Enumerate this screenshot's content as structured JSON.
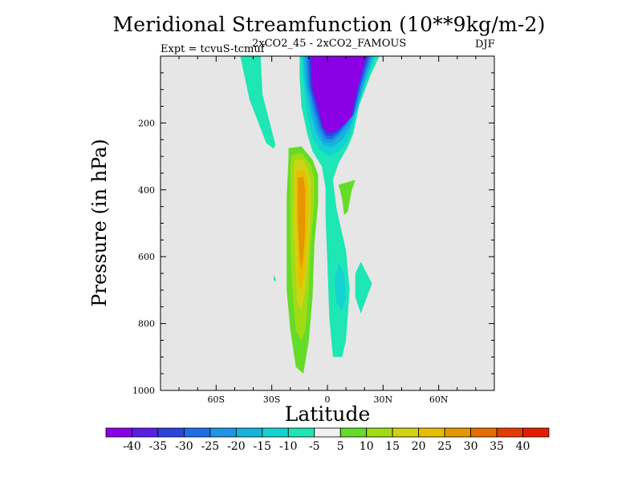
{
  "chart_data": {
    "type": "contour",
    "title": "Meridional Streamfunction (10**9kg/m-2)",
    "experiment": "Expt = tcvuS-tcmuf",
    "subtitle": "2xCO2_45 - 2xCO2_FAMOUS",
    "season": "DJF",
    "xlabel": "Latitude",
    "ylabel": "Pressure (in hPa)",
    "xlim": [
      -90,
      90
    ],
    "ylim": [
      1000,
      0
    ],
    "x_ticks": [
      {
        "value": -60,
        "label": "60S"
      },
      {
        "value": -30,
        "label": "30S"
      },
      {
        "value": 0,
        "label": "0"
      },
      {
        "value": 30,
        "label": "30N"
      },
      {
        "value": 60,
        "label": "60N"
      }
    ],
    "y_ticks": [
      {
        "value": 200,
        "label": "200"
      },
      {
        "value": 400,
        "label": "400"
      },
      {
        "value": 600,
        "label": "600"
      },
      {
        "value": 800,
        "label": "800"
      },
      {
        "value": 1000,
        "label": "1000"
      }
    ],
    "background_color": "#e6e6e6",
    "colorbar": {
      "levels": [
        -40,
        -35,
        -30,
        -25,
        -20,
        -15,
        -10,
        -5,
        5,
        10,
        15,
        20,
        25,
        30,
        35,
        40
      ],
      "colors": [
        "#8c00e6",
        "#5a1ee6",
        "#2846dc",
        "#1e6ee6",
        "#1e96e6",
        "#14b4dc",
        "#14d2d2",
        "#1ee6b4",
        "#f0f0f0",
        "#64dc28",
        "#a0dc14",
        "#d2d214",
        "#e6be00",
        "#e69600",
        "#e66e00",
        "#e63c00",
        "#e61e00"
      ]
    },
    "regions": [
      {
        "level": -5,
        "color": "#1ee6b4",
        "points": [
          [
            -47,
            0
          ],
          [
            -36,
            0
          ],
          [
            -35,
            115
          ],
          [
            -28,
            265
          ],
          [
            -29,
            277
          ],
          [
            -33,
            260
          ],
          [
            -42,
            130
          ]
        ]
      },
      {
        "level": -5,
        "color": "#1ee6b4",
        "points": [
          [
            -15,
            0
          ],
          [
            28,
            0
          ],
          [
            23,
            60
          ],
          [
            17,
            150
          ],
          [
            14,
            230
          ],
          [
            11,
            272
          ],
          [
            6,
            320
          ],
          [
            3,
            370
          ],
          [
            5,
            460
          ],
          [
            10,
            580
          ],
          [
            12,
            700
          ],
          [
            10,
            850
          ],
          [
            8,
            900
          ],
          [
            3,
            900
          ],
          [
            1,
            780
          ],
          [
            0,
            620
          ],
          [
            -1,
            480
          ],
          [
            -1,
            395
          ],
          [
            -3,
            330
          ],
          [
            -8,
            285
          ],
          [
            -11,
            230
          ],
          [
            -14,
            150
          ],
          [
            -15,
            60
          ]
        ]
      },
      {
        "level": -10,
        "color": "#14d2d2",
        "points": [
          [
            -14,
            0
          ],
          [
            26,
            0
          ],
          [
            21,
            70
          ],
          [
            16,
            155
          ],
          [
            13,
            228
          ],
          [
            10,
            262
          ],
          [
            5,
            290
          ],
          [
            1,
            298
          ],
          [
            -4,
            282
          ],
          [
            -8,
            242
          ],
          [
            -11,
            175
          ],
          [
            -13,
            75
          ]
        ]
      },
      {
        "level": -15,
        "color": "#14b4dc",
        "points": [
          [
            -13,
            0
          ],
          [
            25,
            0
          ],
          [
            20,
            80
          ],
          [
            16,
            160
          ],
          [
            12,
            215
          ],
          [
            8,
            250
          ],
          [
            3,
            272
          ],
          [
            -2,
            268
          ],
          [
            -6,
            232
          ],
          [
            -9,
            170
          ],
          [
            -12,
            80
          ]
        ]
      },
      {
        "level": -20,
        "color": "#1e96e6",
        "points": [
          [
            -12,
            0
          ],
          [
            24,
            0
          ],
          [
            19,
            85
          ],
          [
            15,
            165
          ],
          [
            11,
            208
          ],
          [
            6,
            240
          ],
          [
            2,
            260
          ],
          [
            -2,
            256
          ],
          [
            -5,
            225
          ],
          [
            -8,
            165
          ],
          [
            -11,
            85
          ]
        ]
      },
      {
        "level": -25,
        "color": "#1e6ee6",
        "points": [
          [
            -11,
            0
          ],
          [
            23,
            0
          ],
          [
            18,
            90
          ],
          [
            14,
            170
          ],
          [
            10,
            205
          ],
          [
            6,
            232
          ],
          [
            2,
            250
          ],
          [
            -1,
            246
          ],
          [
            -4,
            218
          ],
          [
            -7,
            160
          ],
          [
            -10,
            90
          ]
        ]
      },
      {
        "level": -30,
        "color": "#2846dc",
        "points": [
          [
            -10,
            0
          ],
          [
            22,
            0
          ],
          [
            17,
            95
          ],
          [
            14,
            175
          ],
          [
            10,
            200
          ],
          [
            6,
            225
          ],
          [
            2,
            240
          ],
          [
            -1,
            236
          ],
          [
            -3,
            212
          ],
          [
            -6,
            158
          ],
          [
            -9,
            95
          ]
        ]
      },
      {
        "level": -40,
        "color": "#8c00e6",
        "points": [
          [
            -9,
            0
          ],
          [
            21,
            0
          ],
          [
            16,
            100
          ],
          [
            13,
            180
          ],
          [
            10,
            200
          ],
          [
            6,
            218
          ],
          [
            2,
            230
          ],
          [
            -1,
            226
          ],
          [
            -3,
            205
          ],
          [
            -5,
            155
          ],
          [
            -8,
            100
          ]
        ]
      },
      {
        "level": 5,
        "color": "#64dc28",
        "points": [
          [
            6,
            385
          ],
          [
            15,
            370
          ],
          [
            13,
            405
          ],
          [
            11,
            465
          ],
          [
            9,
            475
          ],
          [
            8,
            430
          ]
        ]
      },
      {
        "level": -5,
        "color": "#1ee6b4",
        "points": [
          [
            15,
            650
          ],
          [
            18,
            615
          ],
          [
            24,
            680
          ],
          [
            20,
            740
          ],
          [
            18,
            770
          ],
          [
            15,
            720
          ]
        ]
      },
      {
        "level": -5,
        "color": "#1ee6b4",
        "points": [
          [
            -29,
            655
          ],
          [
            -28,
            665
          ],
          [
            -28,
            675
          ],
          [
            -29,
            670
          ]
        ]
      },
      {
        "level": -10,
        "color": "#14d2d2",
        "points": [
          [
            6,
            620
          ],
          [
            9,
            650
          ],
          [
            10,
            720
          ],
          [
            8,
            760
          ],
          [
            5,
            740
          ],
          [
            4,
            670
          ]
        ]
      },
      {
        "level": 5,
        "color": "#64dc28",
        "points": [
          [
            -21,
            275
          ],
          [
            -14,
            270
          ],
          [
            -8,
            310
          ],
          [
            -5,
            355
          ],
          [
            -5,
            440
          ],
          [
            -7,
            560
          ],
          [
            -8,
            720
          ],
          [
            -10,
            850
          ],
          [
            -13,
            950
          ],
          [
            -17,
            930
          ],
          [
            -20,
            820
          ],
          [
            -22,
            700
          ],
          [
            -22,
            560
          ],
          [
            -22,
            420
          ],
          [
            -21,
            310
          ]
        ]
      },
      {
        "level": 10,
        "color": "#a0dc14",
        "points": [
          [
            -19,
            295
          ],
          [
            -14,
            290
          ],
          [
            -9,
            325
          ],
          [
            -7,
            365
          ],
          [
            -7,
            440
          ],
          [
            -9,
            560
          ],
          [
            -10,
            700
          ],
          [
            -12,
            820
          ],
          [
            -14,
            850
          ],
          [
            -17,
            820
          ],
          [
            -19,
            700
          ],
          [
            -20,
            560
          ],
          [
            -20,
            430
          ],
          [
            -20,
            330
          ]
        ]
      },
      {
        "level": 15,
        "color": "#d2d214",
        "points": [
          [
            -18,
            315
          ],
          [
            -13,
            310
          ],
          [
            -10,
            345
          ],
          [
            -9,
            380
          ],
          [
            -9,
            450
          ],
          [
            -10,
            560
          ],
          [
            -12,
            700
          ],
          [
            -14,
            760
          ],
          [
            -16,
            740
          ],
          [
            -17,
            650
          ],
          [
            -18,
            540
          ],
          [
            -18,
            420
          ]
        ]
      },
      {
        "level": 20,
        "color": "#e6be00",
        "points": [
          [
            -17,
            345
          ],
          [
            -13,
            340
          ],
          [
            -11,
            370
          ],
          [
            -10,
            440
          ],
          [
            -11,
            540
          ],
          [
            -12,
            640
          ],
          [
            -14,
            700
          ],
          [
            -16,
            680
          ],
          [
            -16,
            560
          ],
          [
            -17,
            440
          ]
        ]
      },
      {
        "level": 25,
        "color": "#e69600",
        "points": [
          [
            -16,
            365
          ],
          [
            -13,
            360
          ],
          [
            -12,
            400
          ],
          [
            -12,
            520
          ],
          [
            -13,
            600
          ],
          [
            -14,
            640
          ],
          [
            -15,
            600
          ],
          [
            -16,
            480
          ]
        ]
      }
    ]
  }
}
